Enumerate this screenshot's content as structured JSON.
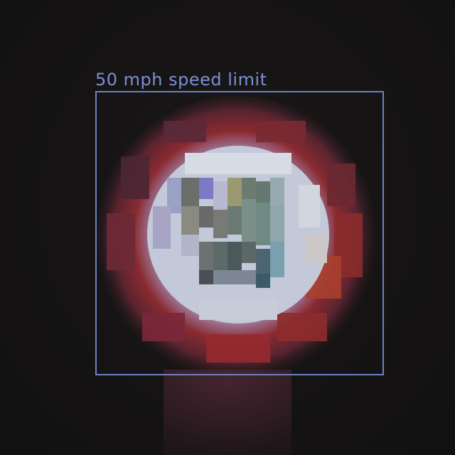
{
  "detections": [
    {
      "label": "50 mph speed limit",
      "box_color": "#6b82c4",
      "label_color": "#7a90d4"
    }
  ],
  "scene": {
    "background_color": "#151313",
    "sign_ring_color": "#8a2a30",
    "sign_face_color": "#c9d0dc"
  }
}
